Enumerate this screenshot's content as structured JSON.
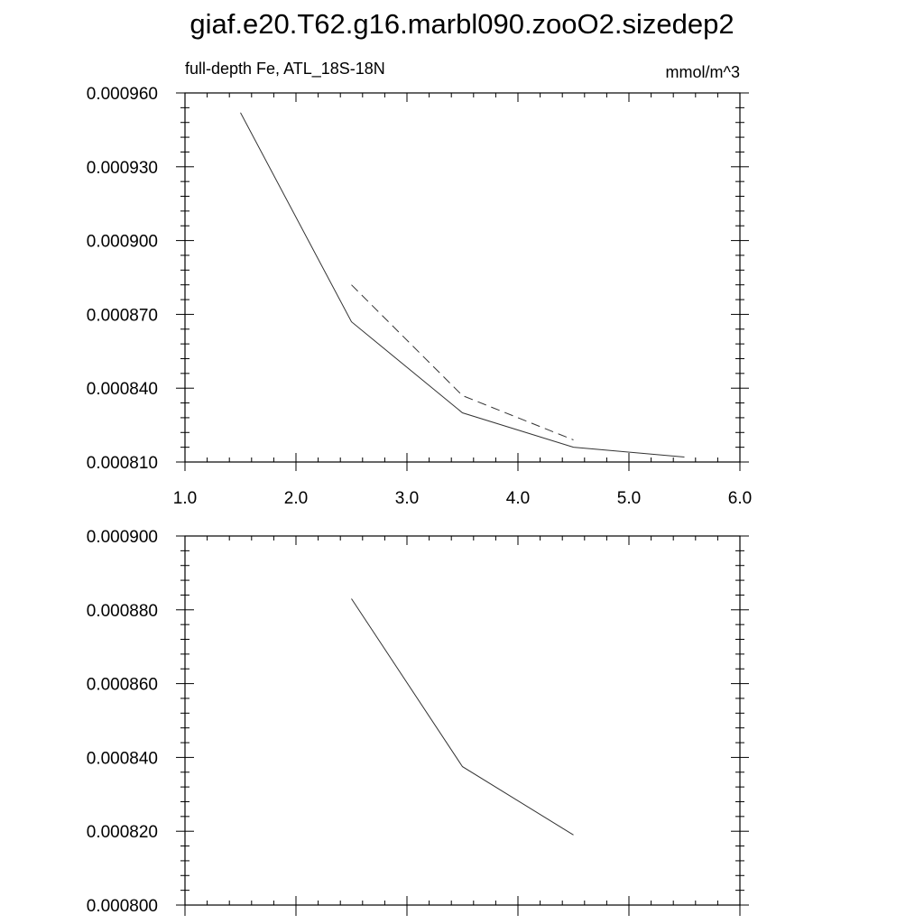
{
  "figure": {
    "title": "giaf.e20.T62.g16.marbl090.zooO2.sizedep2"
  },
  "chart_data": [
    {
      "type": "line",
      "title_left": "full-depth Fe, ATL_18S-18N",
      "title_right": "mmol/m^3",
      "xlim": [
        1.0,
        6.0
      ],
      "ylim": [
        0.00081,
        0.00096
      ],
      "xticks": [
        "1.0",
        "2.0",
        "3.0",
        "4.0",
        "5.0",
        "6.0"
      ],
      "yticks": [
        "0.000810",
        "0.000840",
        "0.000870",
        "0.000900",
        "0.000930",
        "0.000960"
      ],
      "series": [
        {
          "style": "solid",
          "x": [
            1.5,
            2.5,
            3.5,
            4.5,
            5.5
          ],
          "y": [
            0.000952,
            0.000867,
            0.00083,
            0.000816,
            0.000812
          ]
        },
        {
          "style": "dashed",
          "x": [
            2.5,
            3.5,
            4.5
          ],
          "y": [
            0.000882,
            0.000837,
            0.000819
          ]
        }
      ]
    },
    {
      "type": "line",
      "xlim": [
        1.0,
        6.0
      ],
      "ylim": [
        0.0008,
        0.0009
      ],
      "yticks": [
        "0.000800",
        "0.000820",
        "0.000840",
        "0.000860",
        "0.000880",
        "0.000900"
      ],
      "series": [
        {
          "style": "solid",
          "x": [
            2.5,
            3.5,
            4.5
          ],
          "y": [
            0.000883,
            0.0008375,
            0.000819
          ]
        }
      ]
    }
  ]
}
